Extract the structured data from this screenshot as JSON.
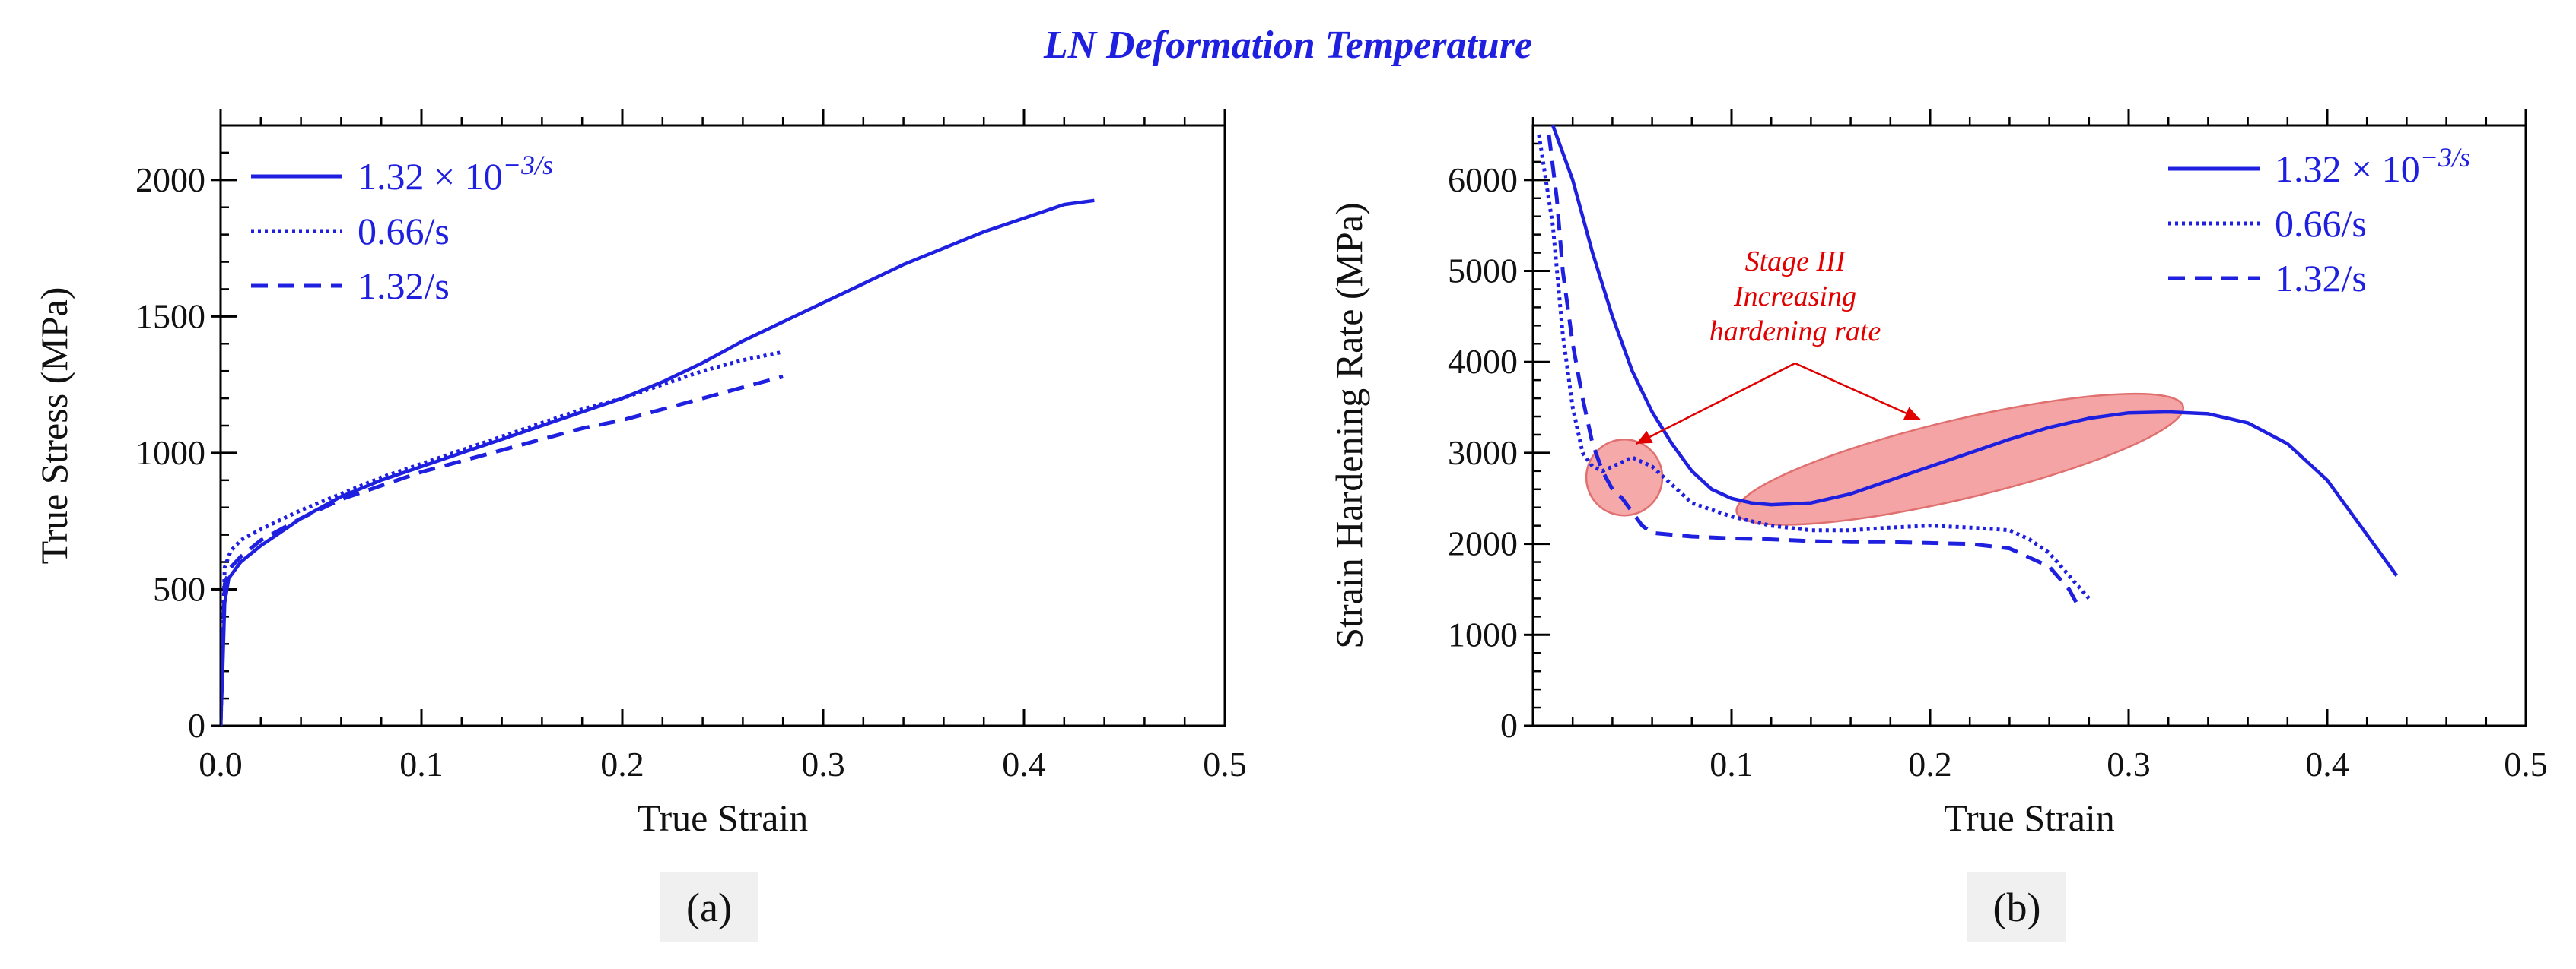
{
  "figure_title": "LN Deformation Temperature",
  "colors": {
    "series": "#1f1fe0",
    "highlight_fill": "#f4a4a4",
    "highlight_stroke": "#e07070",
    "annotation": "#e00000",
    "axis": "#000000"
  },
  "chart_data": [
    {
      "type": "line",
      "panel_label": "(a)",
      "xlabel": "True Strain",
      "ylabel": "True Stress (MPa)",
      "xlim": [
        0,
        0.5
      ],
      "ylim": [
        0,
        2200
      ],
      "xticks": [
        0,
        0.1,
        0.2,
        0.3,
        0.4,
        0.5
      ],
      "xtick_labels": [
        "0.0",
        "0.1",
        "0.2",
        "0.3",
        "0.4",
        "0.5"
      ],
      "yticks": [
        0,
        500,
        1000,
        1500,
        2000
      ],
      "ytick_labels": [
        "0",
        "500",
        "1000",
        "1500",
        "2000"
      ],
      "legend_position": "top-left",
      "series": [
        {
          "name": "1.32 × 10",
          "name_sup": "−3/s",
          "style": "solid",
          "x": [
            0,
            0.001,
            0.002,
            0.004,
            0.01,
            0.02,
            0.04,
            0.06,
            0.08,
            0.1,
            0.12,
            0.14,
            0.16,
            0.18,
            0.2,
            0.22,
            0.24,
            0.26,
            0.28,
            0.3,
            0.32,
            0.34,
            0.36,
            0.38,
            0.4,
            0.42,
            0.435
          ],
          "y": [
            0,
            200,
            450,
            540,
            600,
            660,
            760,
            840,
            900,
            950,
            1000,
            1050,
            1100,
            1150,
            1200,
            1260,
            1330,
            1410,
            1480,
            1550,
            1620,
            1690,
            1750,
            1810,
            1860,
            1910,
            1925
          ]
        },
        {
          "name": "0.66/s",
          "style": "dotted",
          "x": [
            0,
            0.002,
            0.005,
            0.01,
            0.02,
            0.04,
            0.06,
            0.08,
            0.1,
            0.12,
            0.14,
            0.16,
            0.18,
            0.2,
            0.22,
            0.24,
            0.26,
            0.28
          ],
          "y": [
            0,
            580,
            640,
            680,
            720,
            790,
            850,
            910,
            960,
            1010,
            1060,
            1110,
            1160,
            1200,
            1250,
            1300,
            1340,
            1370
          ]
        },
        {
          "name": "1.32/s",
          "style": "dashed",
          "x": [
            0,
            0.002,
            0.005,
            0.01,
            0.02,
            0.04,
            0.06,
            0.08,
            0.1,
            0.12,
            0.14,
            0.16,
            0.18,
            0.2,
            0.22,
            0.24,
            0.26,
            0.28
          ],
          "y": [
            0,
            520,
            580,
            620,
            680,
            760,
            830,
            880,
            930,
            970,
            1010,
            1050,
            1090,
            1120,
            1160,
            1200,
            1240,
            1280
          ]
        }
      ]
    },
    {
      "type": "line",
      "panel_label": "(b)",
      "xlabel": "True Strain",
      "ylabel": "Strain Hardening Rate (MPa)",
      "xlim": [
        0,
        0.5
      ],
      "ylim": [
        0,
        6600
      ],
      "xticks": [
        0.1,
        0.2,
        0.3,
        0.4,
        0.5
      ],
      "xtick_labels": [
        "0.1",
        "0.2",
        "0.3",
        "0.4",
        "0.5"
      ],
      "yticks": [
        0,
        1000,
        2000,
        3000,
        4000,
        5000,
        6000
      ],
      "ytick_labels": [
        "0",
        "1000",
        "2000",
        "3000",
        "4000",
        "5000",
        "6000"
      ],
      "legend_position": "top-right",
      "series": [
        {
          "name": "1.32 × 10",
          "name_sup": "−3/s",
          "style": "solid",
          "x": [
            0.01,
            0.02,
            0.03,
            0.04,
            0.05,
            0.06,
            0.07,
            0.08,
            0.09,
            0.1,
            0.11,
            0.12,
            0.14,
            0.16,
            0.18,
            0.2,
            0.22,
            0.24,
            0.26,
            0.28,
            0.3,
            0.32,
            0.34,
            0.36,
            0.38,
            0.4,
            0.42,
            0.435
          ],
          "y": [
            6600,
            6000,
            5200,
            4500,
            3900,
            3450,
            3100,
            2800,
            2600,
            2500,
            2450,
            2430,
            2450,
            2550,
            2700,
            2850,
            3000,
            3150,
            3280,
            3380,
            3440,
            3450,
            3430,
            3330,
            3100,
            2700,
            2100,
            1650
          ]
        },
        {
          "name": "0.66/s",
          "style": "dotted",
          "x": [
            0.003,
            0.01,
            0.015,
            0.02,
            0.025,
            0.03,
            0.035,
            0.04,
            0.05,
            0.06,
            0.07,
            0.08,
            0.1,
            0.12,
            0.14,
            0.16,
            0.18,
            0.2,
            0.22,
            0.24,
            0.25,
            0.26,
            0.27,
            0.28
          ],
          "y": [
            6500,
            5500,
            4300,
            3500,
            3000,
            2850,
            2800,
            2850,
            2950,
            2850,
            2650,
            2450,
            2300,
            2200,
            2150,
            2150,
            2180,
            2200,
            2180,
            2150,
            2050,
            1900,
            1650,
            1400
          ]
        },
        {
          "name": "1.32/s",
          "style": "dashed",
          "x": [
            0.008,
            0.012,
            0.015,
            0.02,
            0.025,
            0.03,
            0.035,
            0.04,
            0.045,
            0.05,
            0.055,
            0.06,
            0.07,
            0.08,
            0.1,
            0.12,
            0.14,
            0.16,
            0.18,
            0.2,
            0.22,
            0.24,
            0.25,
            0.26,
            0.27,
            0.275
          ],
          "y": [
            6500,
            5800,
            5000,
            4200,
            3600,
            3100,
            2800,
            2600,
            2500,
            2350,
            2200,
            2120,
            2100,
            2080,
            2060,
            2050,
            2030,
            2020,
            2020,
            2010,
            2000,
            1950,
            1850,
            1750,
            1500,
            1300
          ]
        }
      ],
      "annotation": {
        "lines": [
          "Stage III",
          "Increasing",
          "hardening rate"
        ]
      }
    }
  ]
}
